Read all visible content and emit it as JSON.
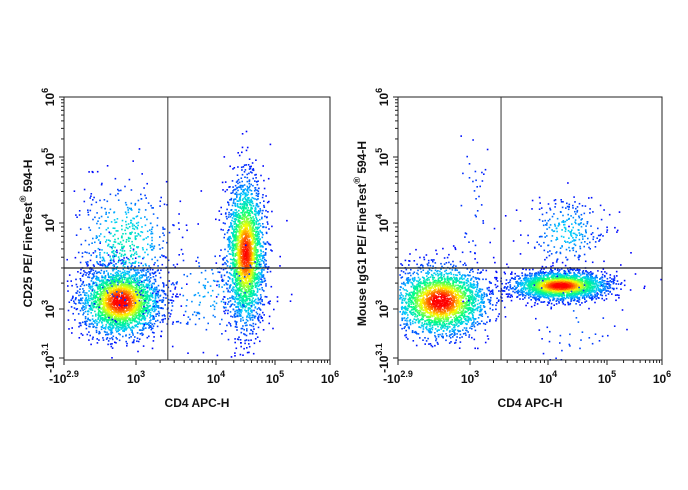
{
  "chart_data": [
    {
      "type": "scatter",
      "subtype": "flow-cytometry-density-dot-plot",
      "xlabel": "CD4 APC-H",
      "ylabel": {
        "main": "CD25 PE/ FineTest",
        "reg": "®",
        "tail": " 594-H"
      },
      "x_scale": "biexponential",
      "y_scale": "biexponential",
      "x_ticks": [
        {
          "base": "-10",
          "exp": "2.9",
          "value": -794
        },
        {
          "base": "10",
          "exp": "3",
          "value": 1000
        },
        {
          "base": "10",
          "exp": "4",
          "value": 10000
        },
        {
          "base": "10",
          "exp": "5",
          "value": 100000
        },
        {
          "base": "10",
          "exp": "6",
          "value": 1000000
        }
      ],
      "y_ticks": [
        {
          "base": "-10",
          "exp": "3.1",
          "value": -1259
        },
        {
          "base": "10",
          "exp": "3",
          "value": 1000
        },
        {
          "base": "10",
          "exp": "4",
          "value": 10000
        },
        {
          "base": "10",
          "exp": "5",
          "value": 100000
        },
        {
          "base": "10",
          "exp": "6",
          "value": 1000000
        }
      ],
      "quadrant_gate": {
        "x": 2500,
        "y": 3000
      },
      "populations": [
        {
          "x": 600,
          "y": 1250,
          "sx": 0.25,
          "sy": 0.2,
          "n": 2600
        },
        {
          "x": 700,
          "y": 6000,
          "sx": 0.3,
          "sy": 0.35,
          "n": 500
        },
        {
          "x": 31000,
          "y": 4500,
          "sx": 0.12,
          "sy": 0.42,
          "n": 2400
        },
        {
          "x": 8000,
          "y": 1500,
          "sx": 0.4,
          "sy": 0.3,
          "n": 180
        }
      ],
      "colormap": [
        "#0000ff",
        "#00c8ff",
        "#00ff80",
        "#ffff00",
        "#ff0000"
      ]
    },
    {
      "type": "scatter",
      "subtype": "flow-cytometry-density-dot-plot",
      "xlabel": "CD4 APC-H",
      "ylabel": {
        "main": "Mouse IgG1 PE/ FineTest",
        "reg": "®",
        "tail": " 594-H"
      },
      "x_scale": "biexponential",
      "y_scale": "biexponential",
      "x_ticks": [
        {
          "base": "-10",
          "exp": "2.9",
          "value": -794
        },
        {
          "base": "10",
          "exp": "3",
          "value": 1000
        },
        {
          "base": "10",
          "exp": "4",
          "value": 10000
        },
        {
          "base": "10",
          "exp": "5",
          "value": 100000
        },
        {
          "base": "10",
          "exp": "6",
          "value": 1000000
        }
      ],
      "y_ticks": [
        {
          "base": "-10",
          "exp": "3.1",
          "value": -1259
        },
        {
          "base": "10",
          "exp": "3",
          "value": 1000
        },
        {
          "base": "10",
          "exp": "4",
          "value": 10000
        },
        {
          "base": "10",
          "exp": "5",
          "value": 100000
        },
        {
          "base": "10",
          "exp": "6",
          "value": 1000000
        }
      ],
      "quadrant_gate": {
        "x": 2500,
        "y": 3000
      },
      "populations": [
        {
          "x": 250,
          "y": 1250,
          "sx": 0.3,
          "sy": 0.2,
          "n": 2400
        },
        {
          "x": 16000,
          "y": 1900,
          "sx": 0.3,
          "sy": 0.08,
          "n": 2400
        },
        {
          "x": 20000,
          "y": 8000,
          "sx": 0.25,
          "sy": 0.2,
          "n": 260
        },
        {
          "x": 1000,
          "y": 20000,
          "sx": 0.15,
          "sy": 0.5,
          "n": 40
        },
        {
          "x": 30000,
          "y": 500,
          "sx": 0.3,
          "sy": 0.4,
          "n": 60
        }
      ],
      "colormap": [
        "#0000ff",
        "#00c8ff",
        "#00ff80",
        "#ffff00",
        "#ff0000"
      ]
    }
  ]
}
